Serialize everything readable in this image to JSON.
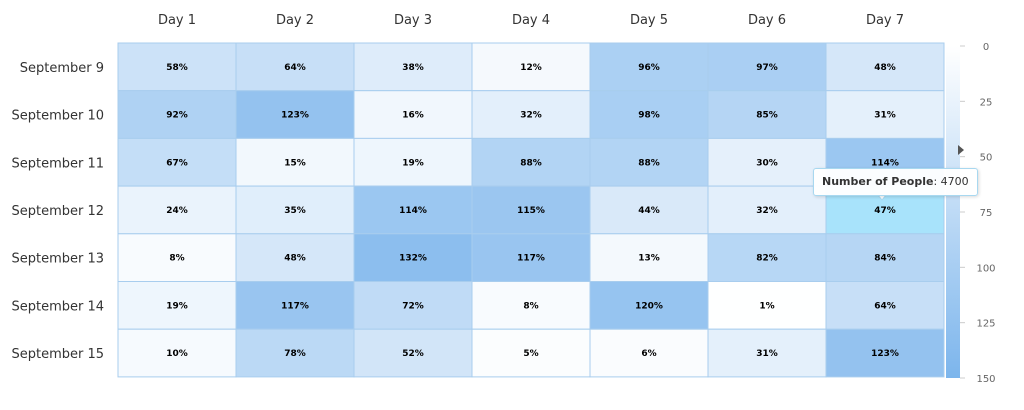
{
  "chart_data": {
    "type": "heatmap",
    "columns": [
      "Day 1",
      "Day 2",
      "Day 3",
      "Day 4",
      "Day 5",
      "Day 6",
      "Day 7"
    ],
    "rows": [
      "September 9",
      "September 10",
      "September 11",
      "September 12",
      "September 13",
      "September 14",
      "September 15"
    ],
    "values": [
      [
        58,
        64,
        38,
        12,
        96,
        97,
        48
      ],
      [
        92,
        123,
        16,
        32,
        98,
        85,
        31
      ],
      [
        67,
        15,
        19,
        88,
        88,
        30,
        114
      ],
      [
        24,
        35,
        114,
        115,
        44,
        32,
        47
      ],
      [
        8,
        48,
        132,
        117,
        13,
        82,
        84
      ],
      [
        19,
        117,
        72,
        8,
        120,
        1,
        64
      ],
      [
        10,
        78,
        52,
        5,
        6,
        31,
        123
      ]
    ],
    "value_suffix": "%",
    "color_scale": {
      "min": 0,
      "max": 150,
      "ticks": [
        0,
        25,
        50,
        75,
        100,
        125,
        150
      ],
      "min_color": "#ffffff",
      "max_color": "#7cb5ec"
    },
    "highlight_color": "#a8e3fb",
    "highlighted_cell": {
      "row": "September 12",
      "column": "Day 7"
    },
    "grid_color": "#a8cdee"
  },
  "tooltip": {
    "label": "Number of People",
    "separator": ": ",
    "value": "4700"
  }
}
